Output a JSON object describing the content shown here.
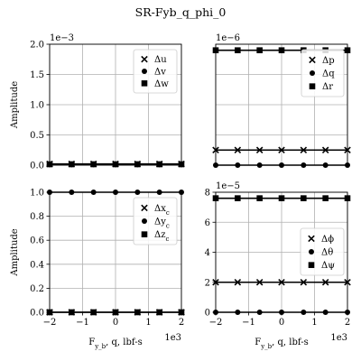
{
  "chart_data": {
    "title": "SR-Fyb_q_phi_0",
    "panels": [
      {
        "type": "line",
        "ylim": [
          0,
          2.0
        ],
        "yticks": [
          "0.0",
          "0.5",
          "1.0",
          "1.5",
          "2.0"
        ],
        "ytick_values": [
          0,
          0.5,
          1.0,
          1.5,
          2.0
        ],
        "multiplier": "1e−3",
        "ylabel": "Amplitude",
        "xlabel": "",
        "xticks": [],
        "x_multiplier": "",
        "legend": [
          "Δu",
          "Δv",
          "Δw"
        ],
        "legend_placement": "top-right",
        "grid": true,
        "series": [
          {
            "name": "Δu",
            "marker": "x",
            "values": [
              0.02,
              0.02,
              0.02,
              0.02,
              0.02,
              0.02,
              0.02
            ]
          },
          {
            "name": "Δv",
            "marker": "o",
            "values": [
              0.01,
              0.01,
              0.01,
              0.01,
              0.01,
              0.01,
              0.01
            ]
          },
          {
            "name": "Δw",
            "marker": "s",
            "values": [
              0.015,
              0.015,
              0.015,
              0.015,
              0.015,
              0.015,
              0.015
            ]
          }
        ]
      },
      {
        "type": "line",
        "ylim": [
          0,
          2.0
        ],
        "yticks": [],
        "ytick_values": [],
        "multiplier": "1e−6",
        "ylabel": "",
        "xlabel": "",
        "xticks": [],
        "x_multiplier": "",
        "legend": [
          "Δp",
          "Δq",
          "Δr"
        ],
        "legend_placement": "center-right",
        "grid": true,
        "series": [
          {
            "name": "Δp",
            "marker": "x",
            "values": [
              0.25,
              0.25,
              0.25,
              0.25,
              0.25,
              0.25,
              0.25
            ]
          },
          {
            "name": "Δq",
            "marker": "o",
            "values": [
              0,
              0,
              0,
              0,
              0,
              0,
              0
            ]
          },
          {
            "name": "Δr",
            "marker": "s",
            "values": [
              1.9,
              1.9,
              1.9,
              1.9,
              1.9,
              1.9,
              1.9
            ]
          }
        ]
      },
      {
        "type": "line",
        "ylim": [
          0,
          1.0
        ],
        "yticks": [
          "0.0",
          "0.2",
          "0.4",
          "0.6",
          "0.8",
          "1.0"
        ],
        "ytick_values": [
          0,
          0.2,
          0.4,
          0.6,
          0.8,
          1.0
        ],
        "multiplier": "",
        "ylabel": "Amplitude",
        "xlabel": "F_{y_b}, q, lbf-s",
        "xticks": [
          "−2",
          "−1",
          "0",
          "1",
          "2"
        ],
        "x_multiplier": "1e3",
        "legend": [
          "Δx_c",
          "Δy_c",
          "Δz_c"
        ],
        "legend_placement": "top-right",
        "grid": true,
        "series": [
          {
            "name": "Δx_c",
            "marker": "x",
            "values": [
              0,
              0,
              0,
              0,
              0,
              0,
              0
            ]
          },
          {
            "name": "Δy_c",
            "marker": "o",
            "values": [
              1,
              1,
              1,
              1,
              1,
              1,
              1
            ]
          },
          {
            "name": "Δz_c",
            "marker": "s",
            "values": [
              0,
              0,
              0,
              0,
              0,
              0,
              0
            ]
          }
        ]
      },
      {
        "type": "line",
        "ylim": [
          0,
          8
        ],
        "yticks": [
          "0",
          "2",
          "4",
          "6",
          "8"
        ],
        "ytick_values": [
          0,
          2,
          4,
          6,
          8
        ],
        "multiplier": "1e−5",
        "ylabel": "",
        "xlabel": "F_{y_b}, q, lbf-s",
        "xticks": [
          "−2",
          "−1",
          "0",
          "1",
          "2"
        ],
        "x_multiplier": "1e3",
        "legend": [
          "Δϕ",
          "Δθ",
          "Δψ"
        ],
        "legend_placement": "center-right",
        "grid": true,
        "series": [
          {
            "name": "Δϕ",
            "marker": "x",
            "values": [
              2,
              2,
              2,
              2,
              2,
              2,
              2
            ]
          },
          {
            "name": "Δθ",
            "marker": "o",
            "values": [
              0,
              0,
              0,
              0,
              0,
              0,
              0
            ]
          },
          {
            "name": "Δψ",
            "marker": "s",
            "values": [
              7.6,
              7.6,
              7.6,
              7.6,
              7.6,
              7.6,
              7.6
            ]
          }
        ]
      }
    ],
    "x": [
      -2000,
      -1333.33,
      -666.67,
      0,
      666.67,
      1333.33,
      2000
    ],
    "xlim": [
      -2000,
      2000
    ]
  }
}
